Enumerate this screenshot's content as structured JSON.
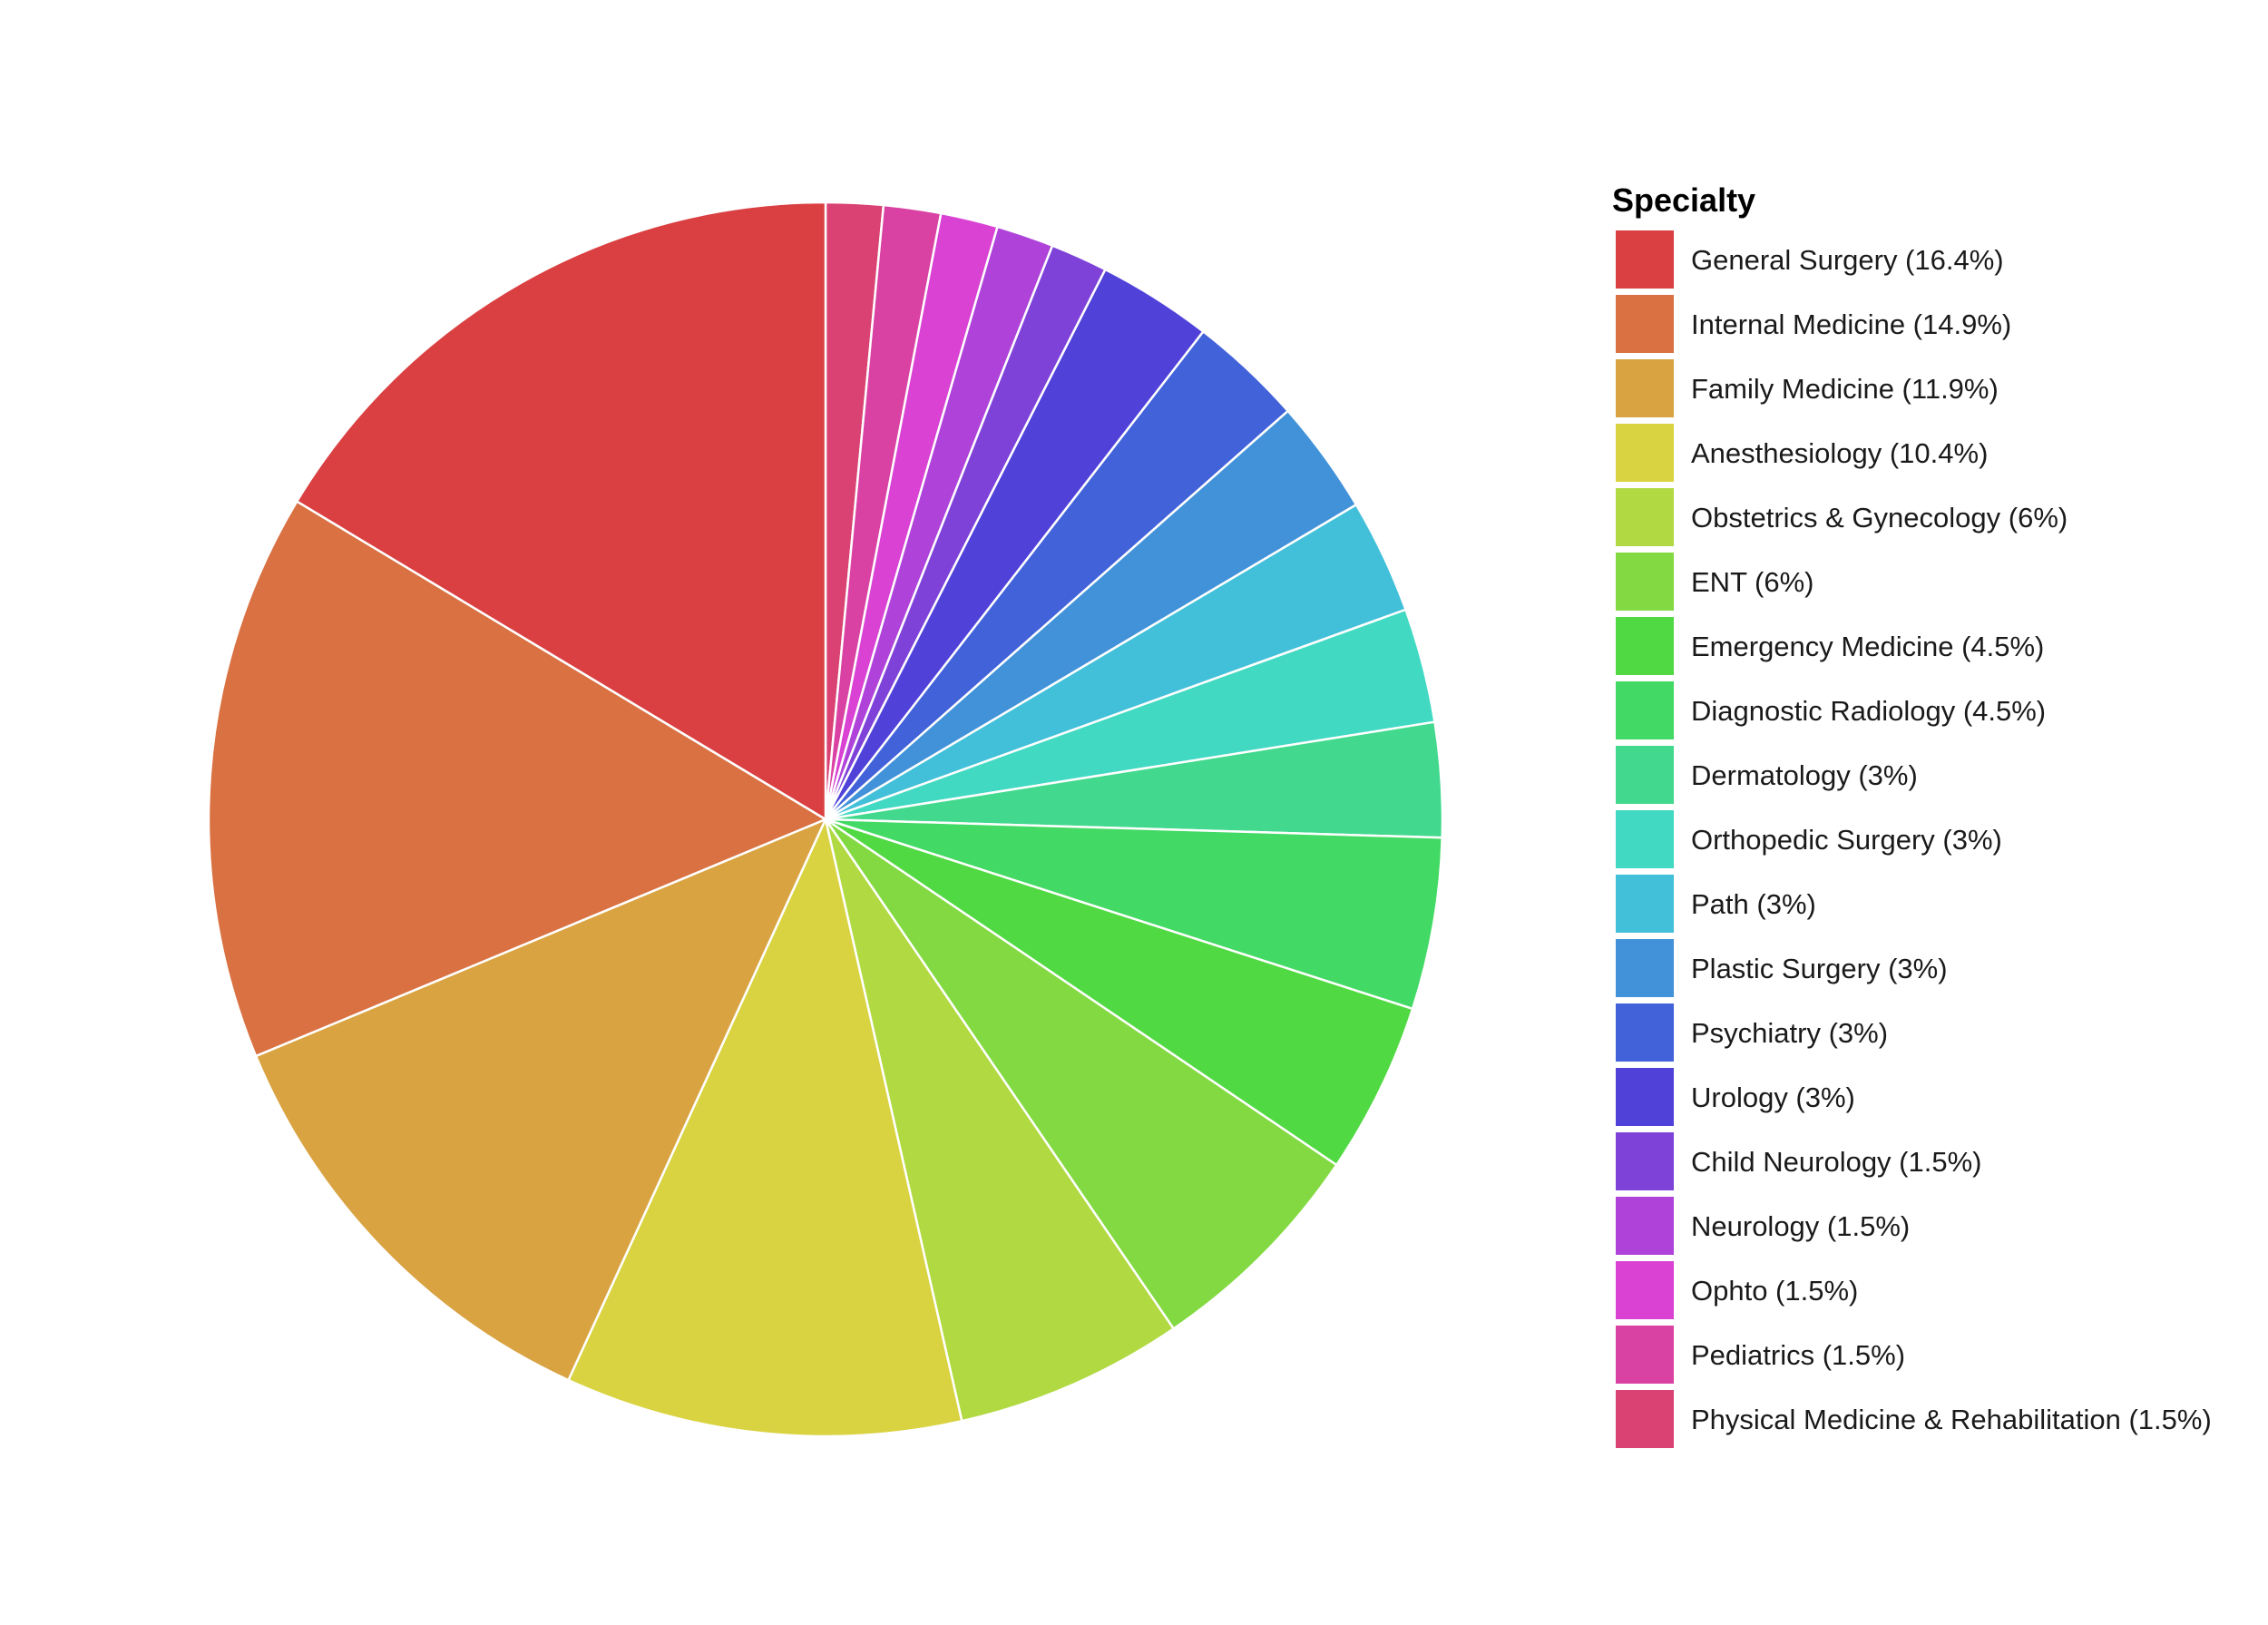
{
  "chart_data": {
    "type": "pie",
    "legend_title": "Specialty",
    "legend_position": "right",
    "start": "12 o'clock",
    "direction": "clockwise, smallest slices first",
    "slices": [
      {
        "label": "General Surgery (16.4%)",
        "value": 16.4,
        "color": "#DA4042"
      },
      {
        "label": "Internal Medicine (14.9%)",
        "value": 14.9,
        "color": "#D97142"
      },
      {
        "label": "Family Medicine (11.9%)",
        "value": 11.9,
        "color": "#D9A342"
      },
      {
        "label": "Anesthesiology (10.4%)",
        "value": 10.4,
        "color": "#D9D342"
      },
      {
        "label": "Obstetrics & Gynecology (6%)",
        "value": 6,
        "color": "#B1D942"
      },
      {
        "label": "ENT (6%)",
        "value": 6,
        "color": "#83D942"
      },
      {
        "label": "Emergency Medicine (4.5%)",
        "value": 4.5,
        "color": "#50D942"
      },
      {
        "label": "Diagnostic Radiology (4.5%)",
        "value": 4.5,
        "color": "#42D964"
      },
      {
        "label": "Dermatology (3%)",
        "value": 3,
        "color": "#42D98E"
      },
      {
        "label": "Orthopedic Surgery (3%)",
        "value": 3,
        "color": "#42D9C3"
      },
      {
        "label": "Path (3%)",
        "value": 3,
        "color": "#42C0D9"
      },
      {
        "label": "Plastic Surgery (3%)",
        "value": 3,
        "color": "#4292D9"
      },
      {
        "label": "Psychiatry (3%)",
        "value": 3,
        "color": "#4262D9"
      },
      {
        "label": "Urology (3%)",
        "value": 3,
        "color": "#5042D9"
      },
      {
        "label": "Child Neurology (1.5%)",
        "value": 1.5,
        "color": "#7E42D9"
      },
      {
        "label": "Neurology (1.5%)",
        "value": 1.5,
        "color": "#AE42D9"
      },
      {
        "label": "Ophto (1.5%)",
        "value": 1.5,
        "color": "#D942D3"
      },
      {
        "label": "Pediatrics (1.5%)",
        "value": 1.5,
        "color": "#D942A3"
      },
      {
        "label": "Physical Medicine & Rehabilitation (1.5%)",
        "value": 1.5,
        "color": "#D94273"
      }
    ]
  }
}
